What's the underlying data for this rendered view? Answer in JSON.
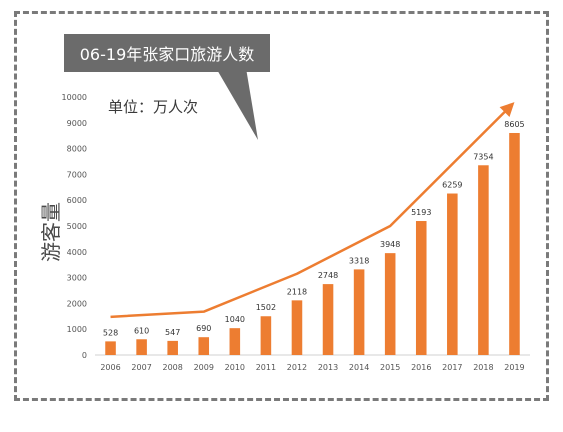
{
  "colors": {
    "bar": "#ED7D31",
    "trend": "#ED7D31",
    "callout": "#6b6b6b"
  },
  "chart_data": {
    "type": "bar",
    "title": "06-19年张家口旅游人数",
    "unit_label": "单位：万人次",
    "ylabel": "游客量",
    "xlabel": "",
    "categories": [
      "2006",
      "2007",
      "2008",
      "2009",
      "2010",
      "2011",
      "2012",
      "2013",
      "2014",
      "2015",
      "2016",
      "2017",
      "2018",
      "2019"
    ],
    "values": [
      528,
      610,
      547,
      690,
      1040,
      1502,
      2118,
      2748,
      3318,
      3948,
      5193,
      6259,
      7354,
      8605
    ],
    "ylim": [
      0,
      10000
    ],
    "yticks": [
      0,
      1000,
      2000,
      3000,
      4000,
      5000,
      6000,
      7000,
      8000,
      9000,
      10000
    ],
    "trend_line": {
      "categories": [
        "2006",
        "2009",
        "2012",
        "2015",
        "2019"
      ],
      "values": [
        1480,
        1680,
        3150,
        5000,
        9800
      ]
    },
    "grid": false,
    "legend": "none"
  }
}
